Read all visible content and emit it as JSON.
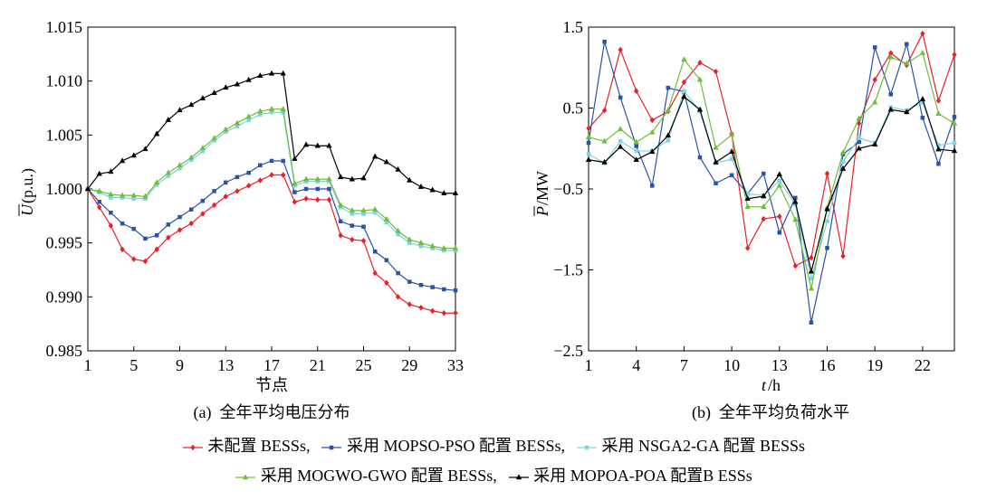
{
  "colors": {
    "series": [
      "#e8202a",
      "#2a52a8",
      "#7fd3e6",
      "#6cbf3c",
      "#000000"
    ]
  },
  "chart_data": [
    {
      "type": "line",
      "caption": "(a)  全年平均电压分布",
      "xlabel": "节点",
      "ylabel_symbol": "U",
      "ylabel_unit": "(p.u.)",
      "x": [
        1,
        2,
        3,
        4,
        5,
        6,
        7,
        8,
        9,
        10,
        11,
        12,
        13,
        14,
        15,
        16,
        17,
        18,
        19,
        20,
        21,
        22,
        23,
        24,
        25,
        26,
        27,
        28,
        29,
        30,
        31,
        32,
        33
      ],
      "xticks": [
        1,
        5,
        9,
        13,
        17,
        21,
        25,
        29,
        33
      ],
      "xtick_labels": [
        "1",
        "5",
        "9",
        "13",
        "17",
        "21",
        "25",
        "29",
        "33"
      ],
      "ylim": [
        0.985,
        1.015
      ],
      "yticks": [
        0.985,
        0.99,
        0.995,
        1.0,
        1.005,
        1.01,
        1.015
      ],
      "ytick_labels": [
        "0.985",
        "0.990",
        "0.995",
        "1.000",
        "1.005",
        "1.010",
        "1.015"
      ],
      "series": [
        {
          "name": "未配置 BESSs,",
          "values": [
            1.0,
            0.9983,
            0.9966,
            0.9944,
            0.9935,
            0.9933,
            0.9944,
            0.9955,
            0.9962,
            0.9968,
            0.9977,
            0.9985,
            0.9993,
            0.9998,
            1.0003,
            1.0008,
            1.0013,
            1.0013,
            0.9988,
            0.9991,
            0.999,
            0.999,
            0.9957,
            0.9953,
            0.9952,
            0.9922,
            0.9913,
            0.99,
            0.9893,
            0.989,
            0.9887,
            0.9885,
            0.9885
          ]
        },
        {
          "name": "采用 MOPSO-PSO 配置 BESSs,",
          "values": [
            1.0,
            0.9988,
            0.9978,
            0.9968,
            0.9963,
            0.9954,
            0.9957,
            0.9967,
            0.9974,
            0.9981,
            0.9989,
            0.9998,
            1.0006,
            1.0011,
            1.0015,
            1.0022,
            1.0026,
            1.0026,
            0.9997,
            1.0,
            1.0,
            1.0,
            0.997,
            0.9966,
            0.9965,
            0.9942,
            0.9934,
            0.9922,
            0.9914,
            0.9911,
            0.9909,
            0.9907,
            0.9906
          ]
        },
        {
          "name": "采用 NSGA2-GA 配置 BESSs",
          "values": [
            1.0,
            0.9997,
            0.9992,
            0.9992,
            0.9991,
            0.9991,
            1.0004,
            1.0012,
            1.0019,
            1.0027,
            1.0035,
            1.0045,
            1.0053,
            1.0058,
            1.0064,
            1.0069,
            1.0071,
            1.0071,
            1.0003,
            1.0007,
            1.0007,
            1.0007,
            0.9983,
            0.9977,
            0.9977,
            0.9978,
            0.9969,
            0.9958,
            0.995,
            0.9947,
            0.9945,
            0.9943,
            0.9943
          ]
        },
        {
          "name": "采用 MOGWO-GWO 配置 BESSs,",
          "values": [
            1.0,
            0.9998,
            0.9995,
            0.9994,
            0.9994,
            0.9993,
            1.0006,
            1.0015,
            1.0022,
            1.0029,
            1.0038,
            1.0047,
            1.0055,
            1.0061,
            1.0067,
            1.0072,
            1.0074,
            1.0074,
            1.0005,
            1.0009,
            1.0009,
            1.0009,
            0.9985,
            0.998,
            0.998,
            0.9981,
            0.9972,
            0.9961,
            0.9953,
            0.995,
            0.9947,
            0.9945,
            0.9945
          ]
        },
        {
          "name": "采用 MOPOA-POA 配置B ESSs",
          "values": [
            1.0,
            1.0014,
            1.0016,
            1.0026,
            1.0031,
            1.0037,
            1.0051,
            1.0064,
            1.0073,
            1.0078,
            1.0084,
            1.0089,
            1.0094,
            1.0097,
            1.0101,
            1.0105,
            1.0107,
            1.0107,
            1.0028,
            1.0041,
            1.004,
            1.004,
            1.0011,
            1.0009,
            1.001,
            1.003,
            1.0025,
            1.0018,
            1.0008,
            1.0002,
            0.9999,
            0.9996,
            0.9996
          ]
        }
      ]
    },
    {
      "type": "line",
      "caption": "(b)  全年平均负荷水平",
      "xlabel_symbol": "t",
      "xlabel_unit": "/h",
      "ylabel_symbol": "P",
      "ylabel_unit": "/MW",
      "x": [
        1,
        2,
        3,
        4,
        5,
        6,
        7,
        8,
        9,
        10,
        11,
        12,
        13,
        14,
        15,
        16,
        17,
        18,
        19,
        20,
        21,
        22,
        23,
        24
      ],
      "xticks": [
        1,
        4,
        7,
        10,
        13,
        16,
        19,
        22
      ],
      "xtick_labels": [
        "1",
        "4",
        "7",
        "10",
        "13",
        "16",
        "19",
        "22"
      ],
      "ylim": [
        -2.5,
        1.5
      ],
      "yticks": [
        -2.5,
        -1.5,
        -0.5,
        0.5,
        1.5
      ],
      "ytick_labels": [
        "−2.5",
        "−1.5",
        "−0.5",
        "0.5",
        "1.5"
      ],
      "series": [
        {
          "name": "未配置 BESSs,",
          "values": [
            0.25,
            0.47,
            1.22,
            0.71,
            0.35,
            0.46,
            0.82,
            1.06,
            0.95,
            0.18,
            -1.23,
            -0.87,
            -0.84,
            -1.45,
            -1.35,
            -0.31,
            -1.33,
            0.31,
            0.85,
            1.18,
            1.03,
            1.42,
            0.59,
            1.16
          ]
        },
        {
          "name": "采用 MOPSO-PSO 配置 BESSs,",
          "values": [
            0.07,
            1.32,
            0.63,
            0.03,
            -0.46,
            0.75,
            0.7,
            -0.11,
            -0.43,
            -0.33,
            -0.56,
            -0.31,
            -1.04,
            -0.61,
            -2.15,
            -1.23,
            -0.07,
            0.08,
            1.25,
            0.67,
            1.29,
            0.38,
            -0.19,
            0.39
          ]
        },
        {
          "name": "采用 NSGA2-GA 配置 BESSs",
          "values": [
            -0.07,
            -0.18,
            0.09,
            -0.03,
            -0.03,
            0.1,
            0.71,
            0.46,
            -0.18,
            -0.13,
            -0.56,
            -0.58,
            -0.4,
            -0.69,
            -1.61,
            -0.9,
            -0.16,
            0.13,
            0.07,
            0.51,
            0.47,
            0.57,
            0.04,
            0.07
          ]
        },
        {
          "name": "采用 MOGWO-GWO 配置 BESSs,",
          "values": [
            0.14,
            0.09,
            0.24,
            0.08,
            0.2,
            0.47,
            1.1,
            0.85,
            0.01,
            0.17,
            -0.72,
            -0.72,
            -0.46,
            -0.88,
            -1.73,
            -0.73,
            -0.05,
            0.37,
            0.57,
            1.13,
            1.05,
            1.18,
            0.43,
            0.31
          ]
        },
        {
          "name": "采用 MOPOA-POA 配置B ESSs",
          "values": [
            -0.14,
            -0.17,
            0.02,
            -0.14,
            -0.04,
            0.16,
            0.64,
            0.48,
            -0.17,
            -0.04,
            -0.62,
            -0.59,
            -0.32,
            -0.66,
            -1.52,
            -0.75,
            -0.25,
            0.0,
            0.05,
            0.48,
            0.45,
            0.61,
            -0.01,
            -0.03
          ]
        }
      ]
    }
  ],
  "legend": {
    "row1": [
      {
        "label": "未配置 BESSs,",
        "series": 0
      },
      {
        "label": "采用 MOPSO-PSO 配置 BESSs,",
        "series": 1
      },
      {
        "label": "采用 NSGA2-GA 配置 BESSs",
        "series": 2
      }
    ],
    "row2": [
      {
        "label": "采用 MOGWO-GWO 配置 BESSs,",
        "series": 3
      },
      {
        "label": "采用 MOPOA-POA 配置B ESSs",
        "series": 4
      }
    ]
  }
}
